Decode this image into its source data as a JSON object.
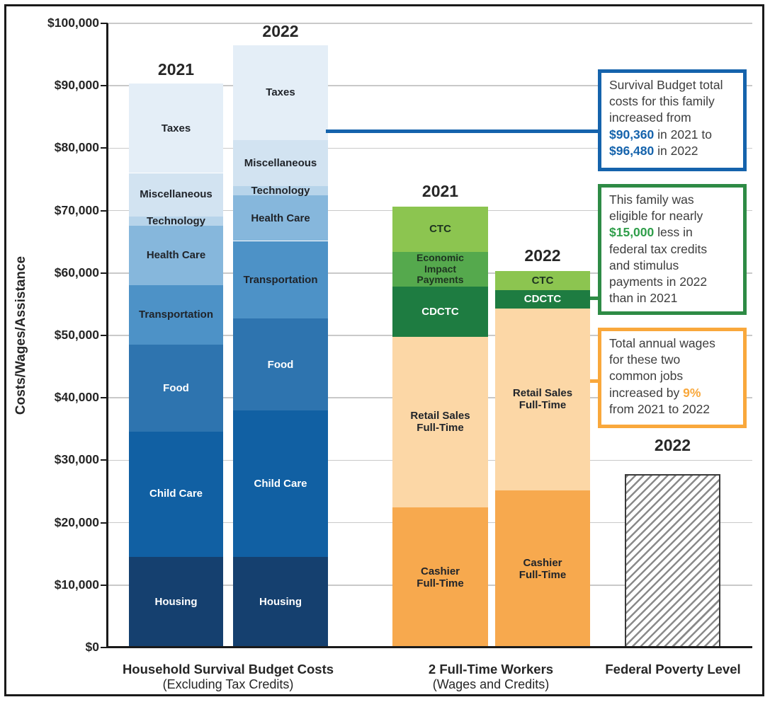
{
  "colors": {
    "frame": "#1a1a1a",
    "axis": "#1a1a1a",
    "gridline": "#c9c9c9",
    "blue_accent": "#1563ac",
    "green_border": "#2e8b45",
    "green_accent": "#2f9e4a",
    "orange_accent": "#f9a83c"
  },
  "chart_data": {
    "type": "bar",
    "stacked": true,
    "grid": true,
    "currency": "USD per year",
    "y_axis": {
      "title": "Costs/Wages/Assistance",
      "min": 0,
      "max": 100000,
      "tick_step": 10000,
      "tick_labels": [
        "$0",
        "$10,000",
        "$20,000",
        "$30,000",
        "$40,000",
        "$50,000",
        "$60,000",
        "$70,000",
        "$80,000",
        "$90,000",
        "$100,000"
      ]
    },
    "groups": [
      {
        "label": "Household Survival Budget Costs",
        "sublabel": "(Excluding Tax Credits)",
        "bars": [
          {
            "year": "2021",
            "total": 90360,
            "segments": [
              {
                "name": "Housing",
                "value": 14544,
                "fill": "#15406f",
                "text": "#ffffff"
              },
              {
                "name": "Child Care",
                "value": 20088,
                "fill": "#1160a3",
                "text": "#ffffff"
              },
              {
                "name": "Food",
                "value": 13884,
                "fill": "#2e74af",
                "text": "#ffffff"
              },
              {
                "name": "Transportation",
                "value": 9588,
                "fill": "#4d92c7",
                "text": "#20242a"
              },
              {
                "name": "Health Care",
                "value": 9468,
                "fill": "#86b7dc",
                "text": "#20242a"
              },
              {
                "name": "Technology",
                "value": 1524,
                "fill": "#b7d4ea",
                "text": "#20242a"
              },
              {
                "name": "Miscellaneous",
                "value": 6924,
                "fill": "#d2e3f1",
                "text": "#20242a"
              },
              {
                "name": "Taxes",
                "value": 14340,
                "fill": "#e4eef7",
                "text": "#20242a"
              }
            ]
          },
          {
            "year": "2022",
            "total": 96480,
            "segments": [
              {
                "name": "Housing",
                "value": 14544,
                "fill": "#15406f",
                "text": "#ffffff"
              },
              {
                "name": "Child Care",
                "value": 23400,
                "fill": "#1160a3",
                "text": "#ffffff"
              },
              {
                "name": "Food",
                "value": 14760,
                "fill": "#2e74af",
                "text": "#ffffff"
              },
              {
                "name": "Transportation",
                "value": 12432,
                "fill": "#4d92c7",
                "text": "#20242a"
              },
              {
                "name": "Health Care",
                "value": 7296,
                "fill": "#86b7dc",
                "text": "#20242a"
              },
              {
                "name": "Technology",
                "value": 1524,
                "fill": "#b7d4ea",
                "text": "#20242a"
              },
              {
                "name": "Miscellaneous",
                "value": 7344,
                "fill": "#d2e3f1",
                "text": "#20242a"
              },
              {
                "name": "Taxes",
                "value": 15180,
                "fill": "#e4eef7",
                "text": "#20242a"
              }
            ]
          }
        ]
      },
      {
        "label": "2 Full-Time Workers",
        "sublabel": "(Wages and Credits)",
        "bars": [
          {
            "year": "2021",
            "total": 70600,
            "segments": [
              {
                "name": "Cashier Full-Time",
                "label": "Cashier\nFull-Time",
                "value": 22500,
                "fill": "#f7a94e",
                "text": "#20242a"
              },
              {
                "name": "Retail Sales Full-Time",
                "label": "Retail Sales\nFull-Time",
                "value": 27300,
                "fill": "#fcd7a6",
                "text": "#20242a"
              },
              {
                "name": "CDCTC",
                "value": 8000,
                "fill": "#1e7c41",
                "text": "#ffffff"
              },
              {
                "name": "Economic Impact Payments",
                "label": "Economic\nImpact\nPayments",
                "value": 5600,
                "fill": "#55a94d",
                "text": "#1d3320",
                "small": true
              },
              {
                "name": "CTC",
                "value": 7200,
                "fill": "#8cc550",
                "text": "#1d3320"
              }
            ]
          },
          {
            "year": "2022",
            "total": 60300,
            "segments": [
              {
                "name": "Cashier Full-Time",
                "label": "Cashier\nFull-Time",
                "value": 25200,
                "fill": "#f7a94e",
                "text": "#20242a"
              },
              {
                "name": "Retail Sales Full-Time",
                "label": "Retail Sales\nFull-Time",
                "value": 29100,
                "fill": "#fcd7a6",
                "text": "#20242a"
              },
              {
                "name": "CDCTC",
                "value": 3000,
                "fill": "#1e7c41",
                "text": "#ffffff"
              },
              {
                "name": "CTC",
                "value": 3000,
                "fill": "#8cc550",
                "text": "#1d3320"
              }
            ]
          }
        ]
      },
      {
        "label": "Federal Poverty Level",
        "sublabel": "",
        "bars": [
          {
            "year": "2022",
            "total": 27750,
            "segments": [
              {
                "name": "Federal Poverty Level",
                "label": "",
                "value": 27750,
                "fill": "hatch",
                "text": "#20242a"
              }
            ]
          }
        ]
      }
    ]
  },
  "callouts": [
    {
      "id": "blue",
      "border": "#1563ac",
      "accent": "#1563ac",
      "lines": [
        [
          {
            "t": "Survival Budget total"
          }
        ],
        [
          {
            "t": "costs for this family"
          }
        ],
        [
          {
            "t": "increased from"
          }
        ],
        [
          {
            "t": "$90,360",
            "a": true
          },
          {
            "t": " in 2021 to"
          }
        ],
        [
          {
            "t": "$96,480",
            "a": true
          },
          {
            "t": " in 2022"
          }
        ]
      ]
    },
    {
      "id": "green",
      "border": "#2e8b45",
      "accent": "#2f9e4a",
      "lines": [
        [
          {
            "t": "This family was"
          }
        ],
        [
          {
            "t": "eligible for nearly"
          }
        ],
        [
          {
            "t": "$15,000",
            "a": true
          },
          {
            "t": " less in"
          }
        ],
        [
          {
            "t": "federal tax credits"
          }
        ],
        [
          {
            "t": "and stimulus"
          }
        ],
        [
          {
            "t": "payments in 2022"
          }
        ],
        [
          {
            "t": "than in 2021"
          }
        ]
      ]
    },
    {
      "id": "orange",
      "border": "#f9a83c",
      "accent": "#f9a83c",
      "lines": [
        [
          {
            "t": "Total annual wages"
          }
        ],
        [
          {
            "t": "for these two"
          }
        ],
        [
          {
            "t": "common jobs"
          }
        ],
        [
          {
            "t": "increased by "
          },
          {
            "t": "9%",
            "a": true
          }
        ],
        [
          {
            "t": "from 2021 to 2022"
          }
        ]
      ]
    }
  ]
}
